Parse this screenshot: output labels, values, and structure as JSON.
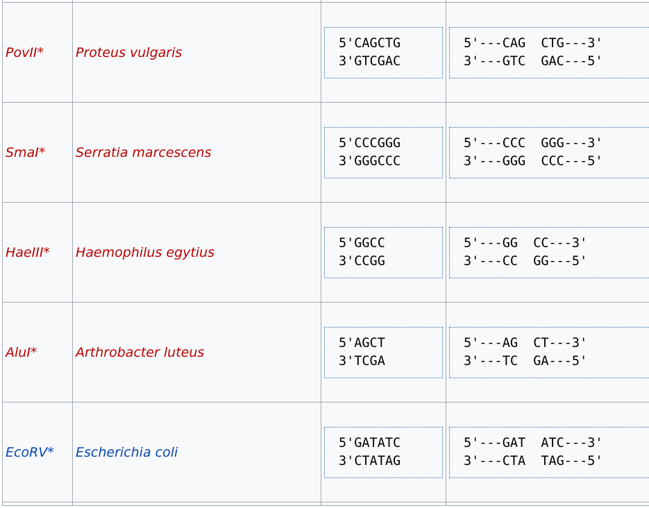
{
  "rows": [
    {
      "enzyme": "PovII*",
      "enzyme_color": "#ba0000",
      "source": "Proteus vulgaris",
      "site": [
        "5'CAGCTG",
        "3'GTCGAC"
      ],
      "cut": [
        "5'---CAG  CTG---3'",
        "3'---GTC  GAC---5'"
      ]
    },
    {
      "enzyme": "SmaI*",
      "enzyme_color": "#ba0000",
      "source": "Serratia marcescens",
      "site": [
        "5'CCCGGG",
        "3'GGGCCC"
      ],
      "cut": [
        "5'---CCC  GGG---3'",
        "3'---GGG  CCC---5'"
      ]
    },
    {
      "enzyme": "HaeIII*",
      "enzyme_color": "#ba0000",
      "source": "Haemophilus egytius",
      "site": [
        "5'GGCC",
        "3'CCGG"
      ],
      "cut": [
        "5'---GG  CC---3'",
        "3'---CC  GG---5'"
      ]
    },
    {
      "enzyme": "AluI*",
      "enzyme_color": "#ba0000",
      "source": "Arthrobacter luteus",
      "site": [
        "5'AGCT",
        "3'TCGA"
      ],
      "cut": [
        "5'---AG  CT---3'",
        "3'---TC  GA---5'"
      ]
    },
    {
      "enzyme": "EcoRV*",
      "enzyme_color": "#0645ad",
      "source": "Escherichia coli",
      "site": [
        "5'GATATC",
        "3'CTATAG"
      ],
      "cut": [
        "5'---GAT  ATC---3'",
        "3'---CTA  TAG---5'"
      ]
    }
  ]
}
